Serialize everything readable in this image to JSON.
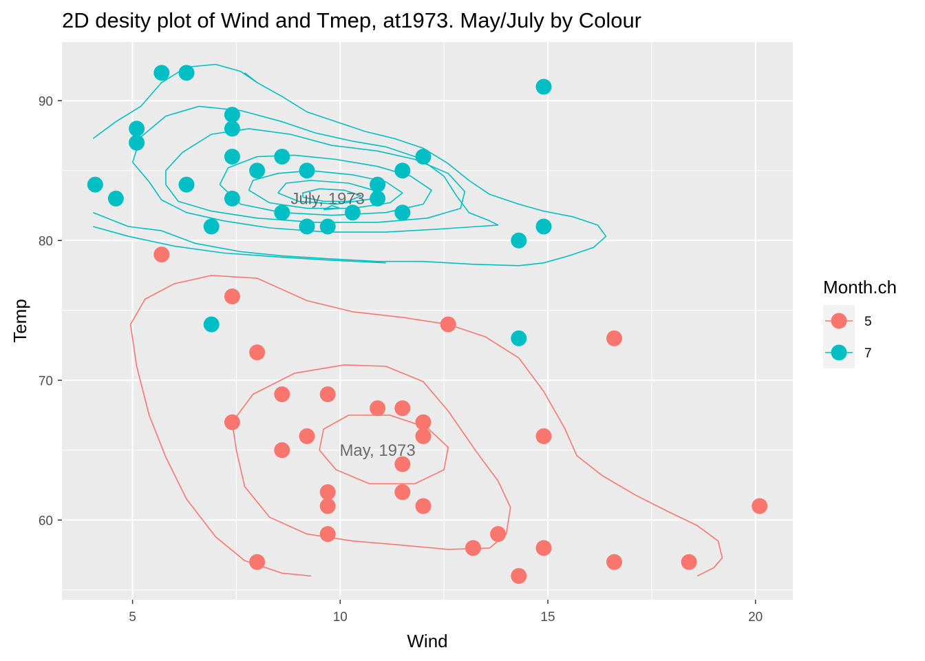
{
  "chart_data": {
    "type": "scatter",
    "title": "2D desity plot of Wind and Tmep, at1973. May/July by Colour",
    "xlabel": "Wind",
    "ylabel": "Temp",
    "xlim": [
      3.3,
      20.9
    ],
    "ylim": [
      54.3,
      94.2
    ],
    "x_ticks": [
      5,
      10,
      15,
      20
    ],
    "x_tick_labels": [
      "5",
      "10",
      "15",
      "20"
    ],
    "y_ticks": [
      60,
      70,
      80,
      90
    ],
    "y_tick_labels": [
      "60",
      "70",
      "80",
      "90"
    ],
    "grid": true,
    "legend": {
      "title": "Month.ch",
      "position": "right"
    },
    "series": [
      {
        "name": "5",
        "color": "#F8766D",
        "points": [
          [
            5.7,
            79
          ],
          [
            7.4,
            76
          ],
          [
            12.6,
            74
          ],
          [
            16.6,
            73
          ],
          [
            8.0,
            72
          ],
          [
            8.6,
            69
          ],
          [
            9.7,
            69
          ],
          [
            10.9,
            68
          ],
          [
            11.5,
            68
          ],
          [
            7.4,
            67
          ],
          [
            12.0,
            67
          ],
          [
            9.2,
            66
          ],
          [
            12.0,
            66
          ],
          [
            14.9,
            66
          ],
          [
            8.6,
            65
          ],
          [
            11.5,
            64
          ],
          [
            9.7,
            62
          ],
          [
            11.5,
            62
          ],
          [
            9.7,
            61
          ],
          [
            12.0,
            61
          ],
          [
            20.1,
            61
          ],
          [
            9.7,
            59
          ],
          [
            13.8,
            59
          ],
          [
            13.2,
            58
          ],
          [
            14.9,
            58
          ],
          [
            8.0,
            57
          ],
          [
            16.6,
            57
          ],
          [
            18.4,
            57
          ],
          [
            14.3,
            56
          ]
        ]
      },
      {
        "name": "7",
        "color": "#00BFC4",
        "points": [
          [
            5.7,
            92
          ],
          [
            6.3,
            92
          ],
          [
            14.9,
            91
          ],
          [
            7.4,
            89
          ],
          [
            5.1,
            88
          ],
          [
            7.4,
            88
          ],
          [
            5.1,
            87
          ],
          [
            7.4,
            86
          ],
          [
            8.6,
            86
          ],
          [
            12.0,
            86
          ],
          [
            8.0,
            85
          ],
          [
            9.2,
            85
          ],
          [
            11.5,
            85
          ],
          [
            4.1,
            84
          ],
          [
            6.3,
            84
          ],
          [
            10.9,
            84
          ],
          [
            4.6,
            83
          ],
          [
            7.4,
            83
          ],
          [
            10.9,
            83
          ],
          [
            8.6,
            82
          ],
          [
            10.3,
            82
          ],
          [
            11.5,
            82
          ],
          [
            6.9,
            81
          ],
          [
            9.2,
            81
          ],
          [
            9.7,
            81
          ],
          [
            14.9,
            81
          ],
          [
            14.3,
            80
          ],
          [
            6.9,
            74
          ],
          [
            14.3,
            73
          ]
        ]
      }
    ],
    "contours": [
      {
        "series": "7",
        "color": "#00BFC4",
        "paths": [
          [
            [
              4.05,
              87.3
            ],
            [
              4.6,
              88.5
            ],
            [
              5.2,
              89.6
            ],
            [
              5.7,
              91.3
            ],
            [
              6.3,
              92.4
            ],
            [
              7.0,
              92.6
            ],
            [
              7.6,
              92.1
            ],
            [
              8.0,
              91.3
            ]
          ],
          [
            [
              4.05,
              82.0
            ],
            [
              4.9,
              81.0
            ],
            [
              5.7,
              80.7
            ],
            [
              6.5,
              79.8
            ],
            [
              7.6,
              79.2
            ],
            [
              8.6,
              78.9
            ],
            [
              9.7,
              78.7
            ],
            [
              10.9,
              78.5
            ],
            [
              12.0,
              78.5
            ],
            [
              13.2,
              78.3
            ],
            [
              14.3,
              78.2
            ],
            [
              14.9,
              78.4
            ],
            [
              15.5,
              78.9
            ],
            [
              16.1,
              79.5
            ],
            [
              16.4,
              80.3
            ],
            [
              16.2,
              81.1
            ],
            [
              15.6,
              81.7
            ],
            [
              14.9,
              82.1
            ],
            [
              14.3,
              82.6
            ],
            [
              13.6,
              83.3
            ],
            [
              13.1,
              84.3
            ],
            [
              12.6,
              85.5
            ],
            [
              12.0,
              86.6
            ],
            [
              11.3,
              87.3
            ],
            [
              10.6,
              87.8
            ],
            [
              10.0,
              88.4
            ],
            [
              9.2,
              89.2
            ],
            [
              8.6,
              90.3
            ],
            [
              8.0,
              91.3
            ],
            [
              7.7,
              92.0
            ]
          ],
          [
            [
              4.05,
              81.0
            ],
            [
              4.9,
              80.3
            ],
            [
              6.0,
              79.6
            ],
            [
              7.2,
              79.1
            ],
            [
              8.6,
              78.8
            ],
            [
              9.7,
              78.6
            ],
            [
              11.1,
              78.4
            ]
          ],
          [
            [
              5.0,
              85.6
            ],
            [
              5.4,
              84.2
            ],
            [
              5.7,
              82.9
            ],
            [
              6.3,
              82.0
            ],
            [
              7.2,
              81.4
            ],
            [
              8.3,
              80.9
            ],
            [
              9.7,
              80.6
            ],
            [
              11.1,
              80.6
            ],
            [
              12.3,
              80.8
            ],
            [
              13.3,
              81.0
            ],
            [
              13.8,
              81.1
            ],
            [
              13.6,
              81.4
            ],
            [
              13.1,
              82.0
            ],
            [
              12.8,
              83.2
            ],
            [
              12.5,
              84.6
            ],
            [
              11.9,
              85.9
            ],
            [
              11.1,
              86.7
            ],
            [
              10.3,
              87.1
            ],
            [
              9.4,
              87.7
            ],
            [
              8.6,
              88.5
            ],
            [
              7.6,
              89.3
            ],
            [
              6.6,
              89.6
            ],
            [
              5.8,
              88.9
            ],
            [
              5.2,
              87.4
            ],
            [
              5.0,
              85.6
            ]
          ],
          [
            [
              5.8,
              84.0
            ],
            [
              6.1,
              82.8
            ],
            [
              6.9,
              82.1
            ],
            [
              8.0,
              81.6
            ],
            [
              9.4,
              81.3
            ],
            [
              10.9,
              81.3
            ],
            [
              12.1,
              81.6
            ],
            [
              12.9,
              82.3
            ],
            [
              13.0,
              83.5
            ],
            [
              12.6,
              84.8
            ],
            [
              11.8,
              85.8
            ],
            [
              10.9,
              86.4
            ],
            [
              9.8,
              86.8
            ],
            [
              8.8,
              87.6
            ],
            [
              7.8,
              88.0
            ],
            [
              6.9,
              87.6
            ],
            [
              6.2,
              86.3
            ],
            [
              5.8,
              85.0
            ],
            [
              5.8,
              84.0
            ]
          ],
          [
            [
              7.1,
              84.0
            ],
            [
              7.6,
              82.6
            ],
            [
              8.6,
              82.0
            ],
            [
              9.8,
              81.8
            ],
            [
              11.1,
              82.0
            ],
            [
              12.0,
              82.6
            ],
            [
              12.2,
              83.6
            ],
            [
              11.7,
              84.6
            ],
            [
              10.9,
              85.3
            ],
            [
              9.9,
              85.8
            ],
            [
              8.9,
              86.1
            ],
            [
              8.0,
              86.0
            ],
            [
              7.3,
              85.2
            ],
            [
              7.1,
              84.0
            ]
          ],
          [
            [
              7.8,
              83.6
            ],
            [
              8.3,
              82.7
            ],
            [
              9.2,
              82.3
            ],
            [
              10.3,
              82.3
            ],
            [
              11.2,
              82.7
            ],
            [
              11.5,
              83.4
            ],
            [
              11.1,
              84.2
            ],
            [
              10.3,
              84.7
            ],
            [
              9.3,
              85.0
            ],
            [
              8.5,
              84.8
            ],
            [
              7.9,
              84.3
            ],
            [
              7.8,
              83.6
            ]
          ],
          [
            [
              8.5,
              83.4
            ],
            [
              9.0,
              82.8
            ],
            [
              9.9,
              82.6
            ],
            [
              10.8,
              83.0
            ],
            [
              10.8,
              83.6
            ],
            [
              10.2,
              84.1
            ],
            [
              9.3,
              84.3
            ],
            [
              8.7,
              84.1
            ],
            [
              8.5,
              83.4
            ]
          ],
          [
            [
              9.1,
              83.1
            ],
            [
              9.6,
              82.8
            ],
            [
              10.2,
              82.8
            ],
            [
              10.5,
              83.2
            ],
            [
              10.1,
              83.6
            ],
            [
              9.5,
              83.7
            ],
            [
              9.1,
              83.4
            ],
            [
              9.1,
              83.1
            ]
          ],
          [
            [
              9.6,
              82.2
            ],
            [
              10.0,
              82.3
            ],
            [
              9.8,
              82.5
            ],
            [
              9.6,
              82.2
            ]
          ]
        ]
      },
      {
        "series": "5",
        "color": "#F8766D",
        "paths": [
          [
            [
              9.3,
              56.0
            ],
            [
              8.6,
              56.2
            ],
            [
              7.7,
              57.1
            ],
            [
              7.0,
              58.8
            ],
            [
              6.3,
              61.5
            ],
            [
              5.8,
              64.5
            ],
            [
              5.4,
              67.5
            ],
            [
              5.1,
              71.0
            ],
            [
              4.95,
              74.0
            ],
            [
              5.3,
              75.8
            ],
            [
              6.0,
              76.9
            ],
            [
              6.9,
              77.5
            ],
            [
              8.0,
              77.3
            ],
            [
              8.6,
              76.5
            ],
            [
              9.2,
              75.7
            ],
            [
              10.3,
              74.9
            ],
            [
              11.5,
              74.5
            ],
            [
              12.6,
              74.0
            ],
            [
              13.5,
              73.1
            ],
            [
              14.3,
              71.6
            ],
            [
              14.9,
              69.2
            ],
            [
              15.4,
              66.6
            ],
            [
              15.7,
              64.6
            ],
            [
              16.3,
              63.2
            ],
            [
              17.1,
              61.8
            ],
            [
              17.9,
              60.6
            ],
            [
              18.6,
              59.6
            ],
            [
              19.1,
              58.5
            ],
            [
              19.2,
              57.3
            ],
            [
              19.0,
              56.6
            ],
            [
              18.6,
              56.0
            ]
          ],
          [
            [
              14.0,
              59.0
            ],
            [
              13.6,
              58.0
            ],
            [
              12.6,
              57.9
            ],
            [
              11.5,
              58.2
            ],
            [
              10.3,
              58.5
            ],
            [
              9.2,
              59.0
            ],
            [
              8.3,
              60.2
            ],
            [
              7.7,
              62.4
            ],
            [
              7.5,
              65.0
            ],
            [
              7.4,
              67.0
            ],
            [
              7.9,
              69.0
            ],
            [
              8.9,
              70.5
            ],
            [
              10.1,
              71.1
            ],
            [
              11.1,
              71.0
            ],
            [
              12.0,
              69.9
            ],
            [
              12.6,
              67.8
            ],
            [
              13.3,
              64.8
            ],
            [
              13.8,
              62.8
            ],
            [
              14.1,
              60.9
            ],
            [
              14.0,
              59.0
            ]
          ],
          [
            [
              9.5,
              65.0
            ],
            [
              9.9,
              63.6
            ],
            [
              10.7,
              62.6
            ],
            [
              11.8,
              62.6
            ],
            [
              12.5,
              63.6
            ],
            [
              12.6,
              65.2
            ],
            [
              12.1,
              66.6
            ],
            [
              11.2,
              67.5
            ],
            [
              10.2,
              67.5
            ],
            [
              9.6,
              66.5
            ],
            [
              9.5,
              65.0
            ]
          ]
        ]
      }
    ],
    "annotations": [
      {
        "text": "July, 1973",
        "x": 9.7,
        "y": 83.0
      },
      {
        "text": "May, 1973",
        "x": 10.9,
        "y": 65.0
      }
    ]
  }
}
